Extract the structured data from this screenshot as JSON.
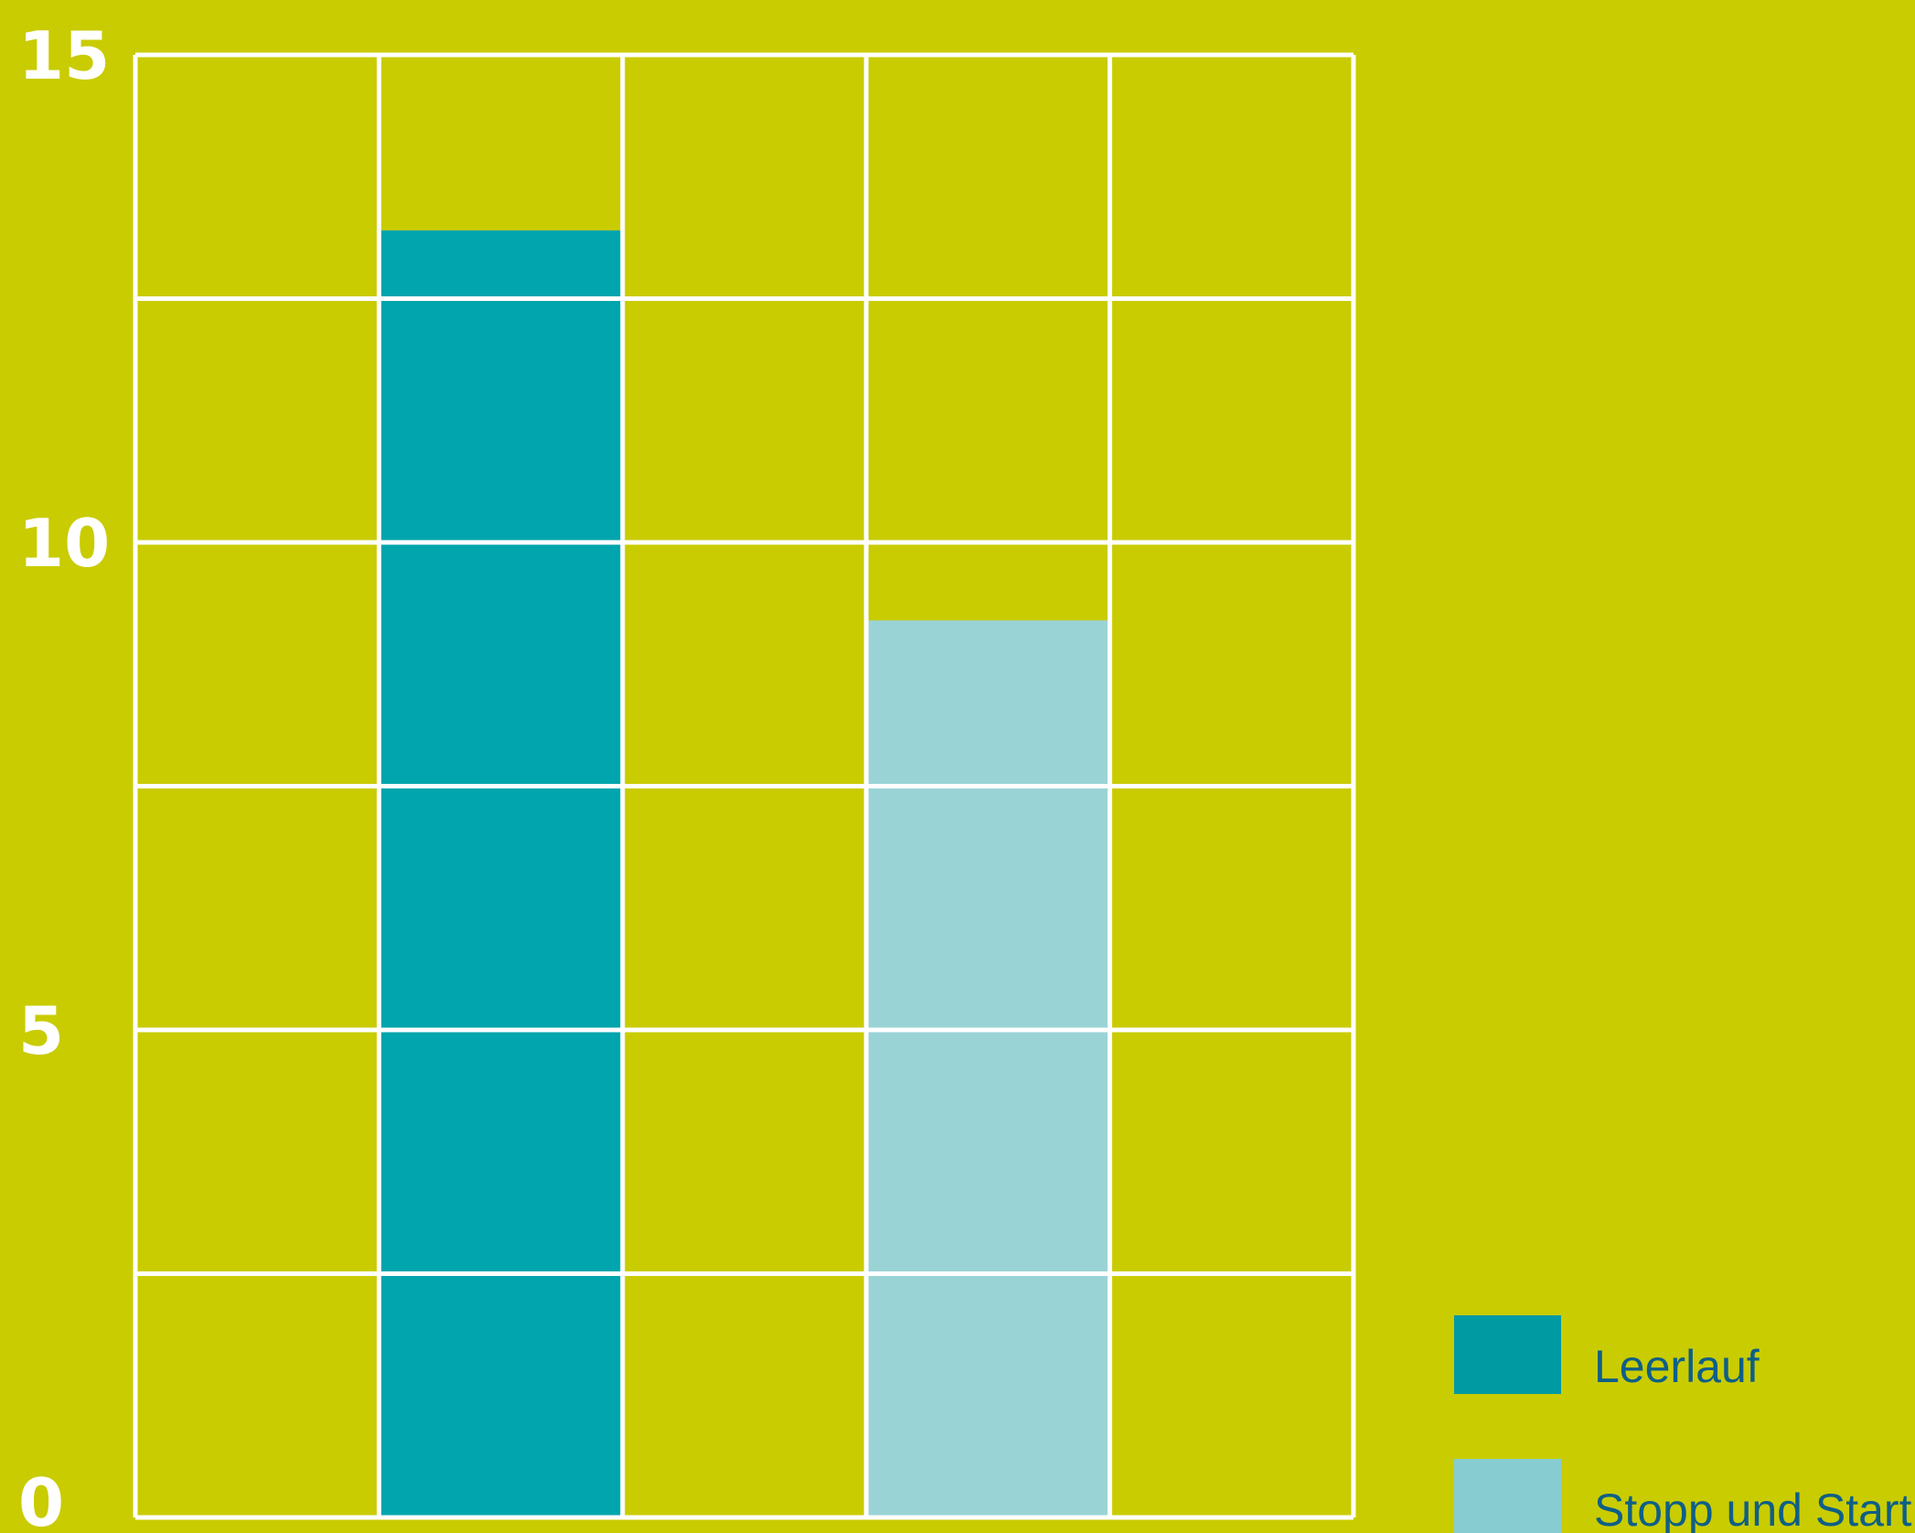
{
  "colors": {
    "background": "#c9cc00",
    "grid": "#ffffff",
    "tick_text": "#ffffff",
    "legend_text": "#0f5f86"
  },
  "chart_data": {
    "type": "bar",
    "title": "",
    "xlabel": "",
    "ylabel": "",
    "ylim": [
      0,
      15
    ],
    "y_ticks": [
      0,
      5,
      10,
      15
    ],
    "grid": true,
    "legend_position": "bottom-right",
    "categories": [
      "",
      "",
      "",
      "",
      ""
    ],
    "series": [
      {
        "name": "Leerlauf",
        "color": "#00a5ad",
        "legend_color": "#009aa3",
        "values": [
          null,
          13.2,
          null,
          null,
          null
        ]
      },
      {
        "name": "Stopp und Start",
        "color": "#9ad3d6",
        "legend_color": "#87ccd0",
        "values": [
          null,
          null,
          null,
          9.2,
          null
        ]
      }
    ]
  }
}
